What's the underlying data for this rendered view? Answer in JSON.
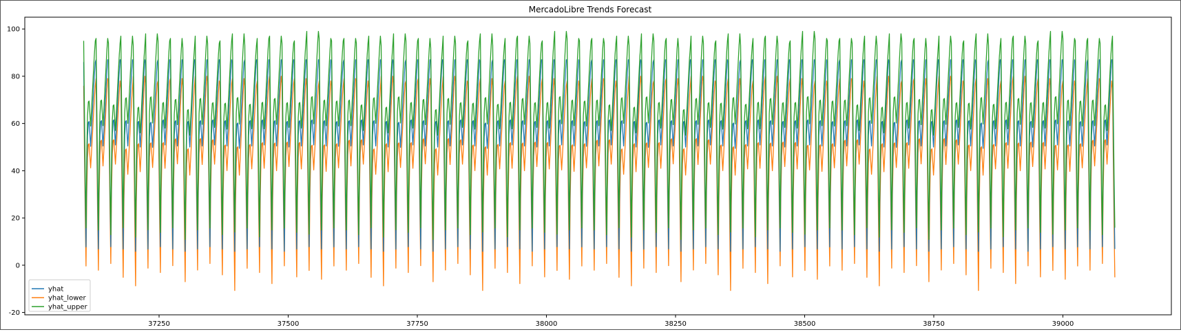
{
  "chart_data": {
    "type": "line",
    "title": "MercadoLibre Trends Forecast",
    "xlabel": "",
    "ylabel": "",
    "xlim": [
      36990,
      39210
    ],
    "ylim": [
      -21,
      105
    ],
    "x_ticks": [
      37250,
      37500,
      37750,
      38000,
      38250,
      38500,
      38750,
      39000
    ],
    "y_ticks": [
      -20,
      0,
      20,
      40,
      60,
      80,
      100
    ],
    "grid": false,
    "legend_position": "lower-left",
    "x_range": [
      37104,
      39101
    ],
    "period": 24,
    "series": [
      {
        "name": "yhat",
        "color": "#1f77b4",
        "peak_values": [
          86,
          87,
          87,
          87,
          87,
          86,
          87,
          87,
          87,
          87,
          87,
          87,
          86,
          87,
          87,
          87,
          87,
          87,
          87,
          87
        ],
        "trough_values": [
          4,
          3,
          4,
          3,
          2,
          3,
          4,
          3,
          2,
          3,
          4,
          3,
          2,
          3,
          4,
          3,
          2,
          3,
          4,
          3
        ]
      },
      {
        "name": "yhat_lower",
        "color": "#ff7f0e",
        "peak_values": [
          76,
          79,
          78,
          75,
          80,
          77,
          78,
          79,
          76,
          80,
          78,
          77,
          79,
          76,
          78,
          80,
          77,
          79,
          76,
          78
        ],
        "trough_values": [
          -4,
          -6,
          -3,
          -9,
          -13,
          -5,
          -7,
          -4,
          -11,
          -6,
          -3,
          -8,
          -15,
          -5,
          -7,
          -12,
          -4,
          -9,
          -6,
          -10
        ]
      },
      {
        "name": "yhat_upper",
        "color": "#2ca02c",
        "peak_values": [
          95,
          96,
          94,
          97,
          93,
          98,
          95,
          96,
          92,
          97,
          94,
          95,
          98,
          93,
          96,
          97,
          94,
          95,
          99,
          96
        ],
        "trough_values": [
          12,
          11,
          9,
          12,
          8,
          11,
          10,
          12,
          7,
          11,
          12,
          9,
          10,
          12,
          8,
          11,
          12,
          10,
          9,
          11
        ]
      }
    ]
  }
}
